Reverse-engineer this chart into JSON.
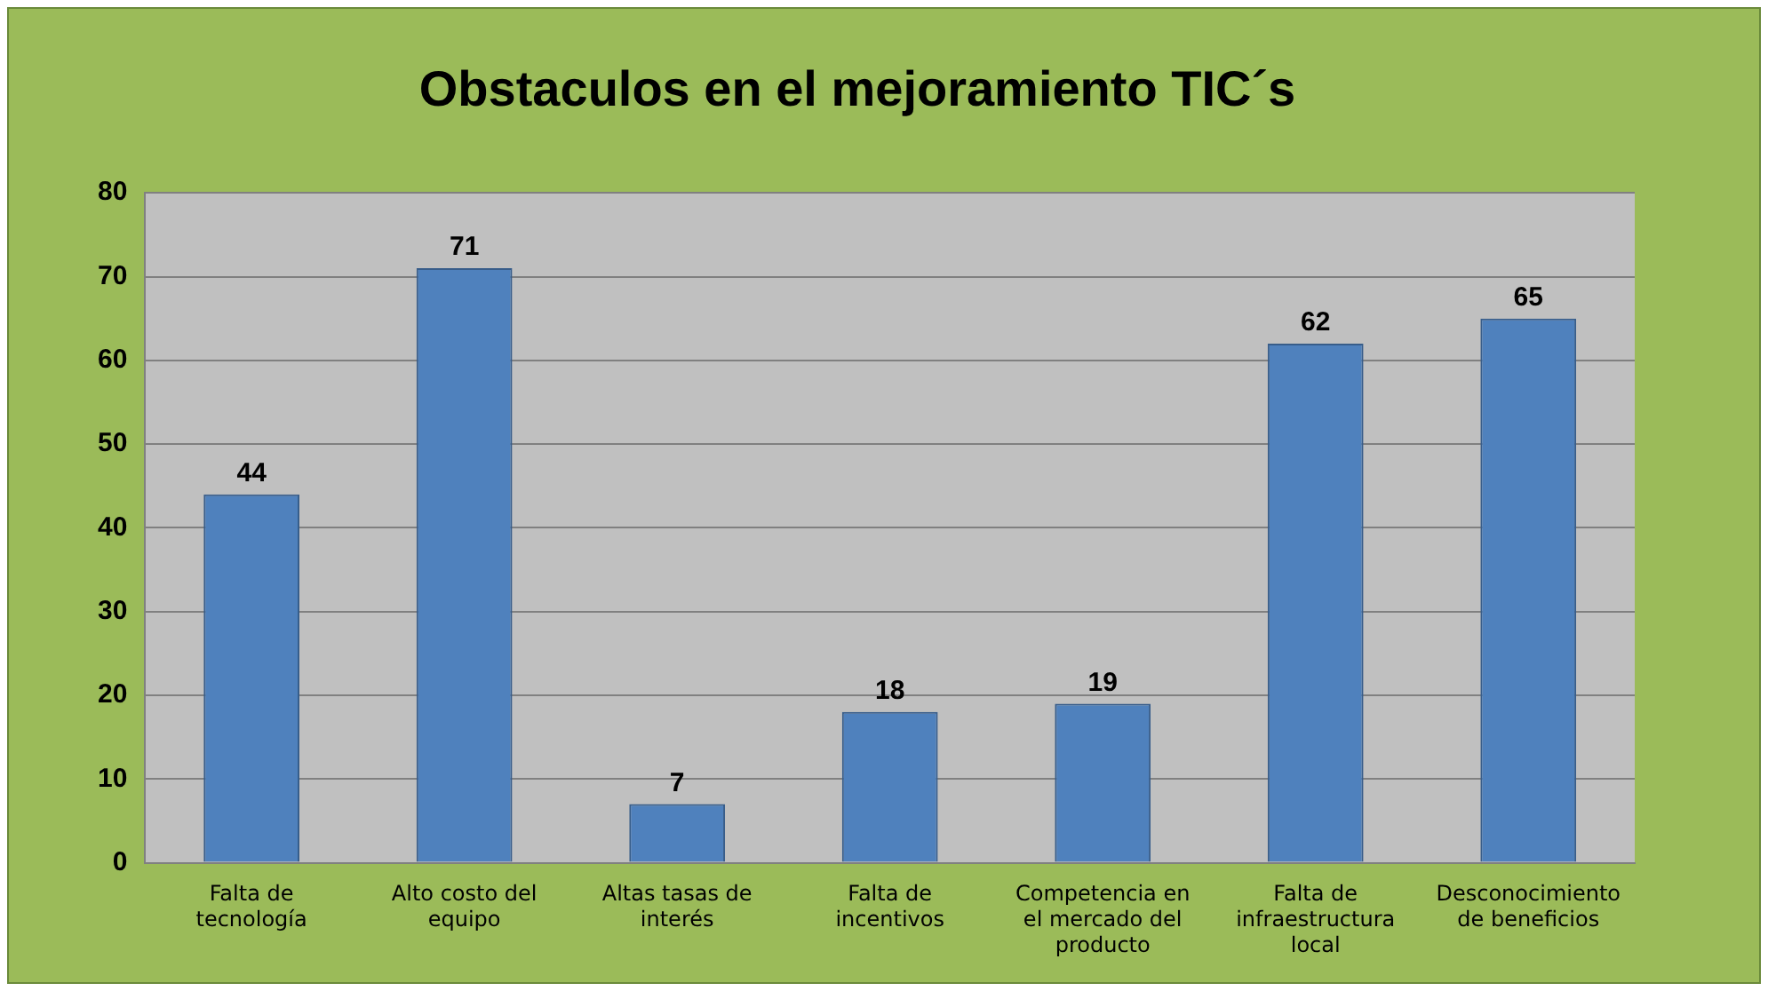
{
  "chart_data": {
    "type": "bar",
    "title": "Obstaculos en el mejoramiento TIC´s",
    "categories": [
      "Falta de tecnología",
      "Alto costo del equipo",
      "Altas tasas de interés",
      "Falta de incentivos",
      "Competencia en el mercado del producto",
      "Falta de infraestructura local",
      "Desconocimiento de beneficios"
    ],
    "values": [
      44,
      71,
      7,
      18,
      19,
      62,
      65
    ],
    "color": "#4f81bd",
    "ylim": [
      0,
      80
    ],
    "yticks": [
      0,
      10,
      20,
      30,
      40,
      50,
      60,
      70,
      80
    ],
    "grid": "y",
    "data_labels": true,
    "legend": false
  }
}
